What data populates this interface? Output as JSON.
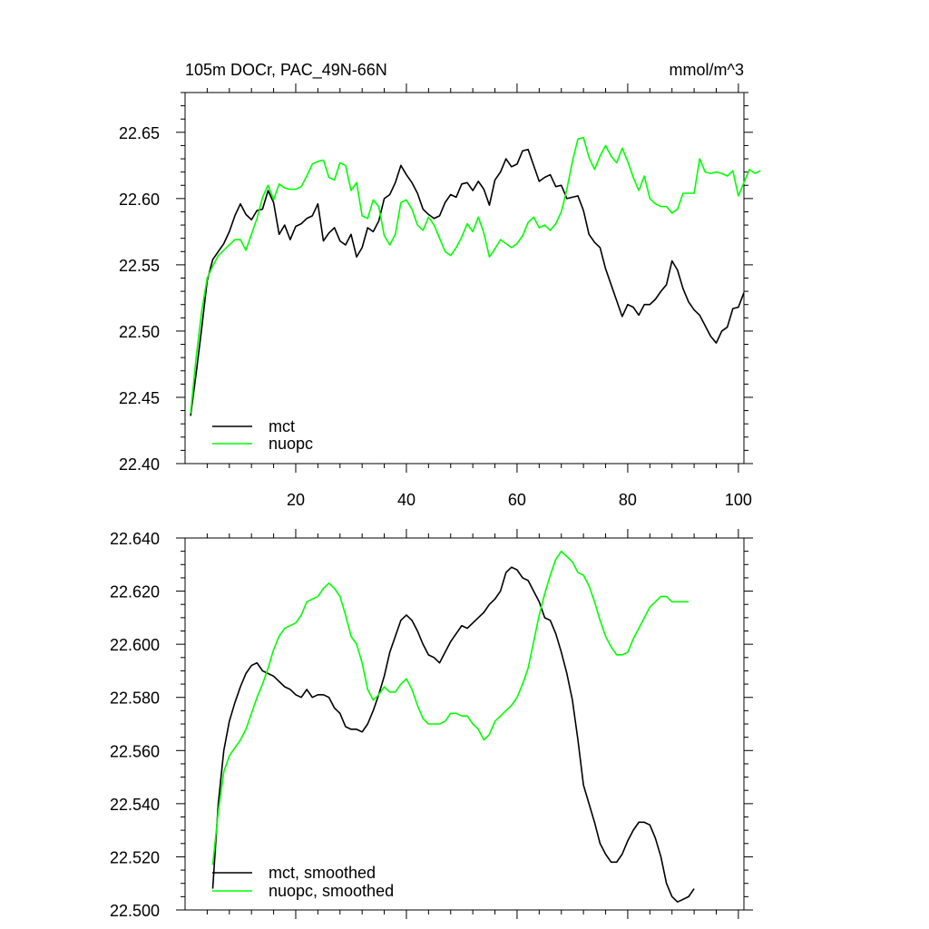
{
  "chart_data": [
    {
      "type": "line",
      "title": "105m DOCr, PAC_49N-66N",
      "units": "mmol/m^3",
      "xlabel": "",
      "ylabel": "",
      "xlim": [
        0,
        101
      ],
      "ylim": [
        22.4,
        22.68
      ],
      "x_tick_labels": [
        "20",
        "40",
        "60",
        "80",
        "100"
      ],
      "x_ticks": [
        20,
        40,
        60,
        80,
        100
      ],
      "y_tick_labels": [
        "22.40",
        "22.45",
        "22.50",
        "22.55",
        "22.60",
        "22.65"
      ],
      "y_ticks": [
        22.4,
        22.45,
        22.5,
        22.55,
        22.6,
        22.65
      ],
      "legend": "bottom-left",
      "series": [
        {
          "name": "mct",
          "color": "#000000",
          "x_start": 1,
          "values": [
            22.436,
            22.468,
            22.502,
            22.538,
            22.554,
            22.56,
            22.566,
            22.575,
            22.587,
            22.596,
            22.588,
            22.584,
            22.591,
            22.592,
            22.606,
            22.597,
            22.573,
            22.58,
            22.569,
            22.579,
            22.581,
            22.585,
            22.587,
            22.596,
            22.568,
            22.574,
            22.578,
            22.568,
            22.565,
            22.573,
            22.556,
            22.563,
            22.578,
            22.575,
            22.583,
            22.6,
            22.603,
            22.612,
            22.625,
            22.618,
            22.612,
            22.604,
            22.592,
            22.588,
            22.585,
            22.587,
            22.597,
            22.603,
            22.601,
            22.611,
            22.612,
            22.606,
            22.613,
            22.607,
            22.595,
            22.614,
            22.62,
            22.63,
            22.624,
            22.626,
            22.636,
            22.637,
            22.625,
            22.613,
            22.616,
            22.618,
            22.609,
            22.61,
            22.6,
            22.601,
            22.602,
            22.591,
            22.573,
            22.567,
            22.563,
            22.547,
            22.535,
            22.523,
            22.511,
            22.52,
            22.518,
            22.512,
            22.52,
            22.52,
            22.524,
            22.53,
            22.535,
            22.553,
            22.546,
            22.532,
            22.522,
            22.516,
            22.512,
            22.504,
            22.496,
            22.491,
            22.5,
            22.503,
            22.517,
            22.518,
            22.529
          ]
        },
        {
          "name": "nuopc",
          "color": "#00ff00",
          "x_start": 1,
          "values": [
            22.438,
            22.48,
            22.515,
            22.54,
            22.549,
            22.557,
            22.561,
            22.565,
            22.569,
            22.569,
            22.561,
            22.573,
            22.585,
            22.601,
            22.61,
            22.599,
            22.611,
            22.608,
            22.607,
            22.607,
            22.609,
            22.617,
            22.626,
            22.628,
            22.629,
            22.616,
            22.614,
            22.627,
            22.625,
            22.606,
            22.612,
            22.587,
            22.585,
            22.599,
            22.594,
            22.572,
            22.565,
            22.573,
            22.597,
            22.599,
            22.592,
            22.58,
            22.576,
            22.586,
            22.58,
            22.57,
            22.56,
            22.557,
            22.563,
            22.571,
            22.581,
            22.575,
            22.586,
            22.574,
            22.556,
            22.562,
            22.569,
            22.566,
            22.563,
            22.566,
            22.572,
            22.582,
            22.586,
            22.578,
            22.58,
            22.576,
            22.581,
            22.59,
            22.607,
            22.628,
            22.645,
            22.646,
            22.631,
            22.622,
            22.632,
            22.64,
            22.632,
            22.627,
            22.638,
            22.628,
            22.616,
            22.606,
            22.617,
            22.6,
            22.596,
            22.594,
            22.594,
            22.589,
            22.592,
            22.604,
            22.604,
            22.604,
            22.63,
            22.62,
            22.619,
            22.62,
            22.619,
            22.617,
            22.621,
            22.602,
            22.612,
            22.622,
            22.619,
            22.621
          ]
        }
      ]
    },
    {
      "type": "line",
      "title": "",
      "xlabel": "",
      "ylabel": "",
      "xlim": [
        0,
        101
      ],
      "ylim": [
        22.5,
        22.64
      ],
      "x_ticks": [
        20,
        40,
        60,
        80,
        100
      ],
      "y_tick_labels": [
        "22.500",
        "22.520",
        "22.540",
        "22.560",
        "22.580",
        "22.600",
        "22.620",
        "22.640"
      ],
      "y_ticks": [
        22.5,
        22.52,
        22.54,
        22.56,
        22.58,
        22.6,
        22.62,
        22.64
      ],
      "legend": "bottom-left",
      "series": [
        {
          "name": "mct, smoothed",
          "color": "#000000",
          "x_start": 5,
          "values": [
            22.508,
            22.54,
            22.56,
            22.571,
            22.578,
            22.584,
            22.589,
            22.592,
            22.593,
            22.59,
            22.589,
            22.588,
            22.586,
            22.584,
            22.583,
            22.581,
            22.58,
            22.583,
            22.58,
            22.581,
            22.581,
            22.58,
            22.576,
            22.574,
            22.569,
            22.568,
            22.568,
            22.567,
            22.57,
            22.575,
            22.581,
            22.588,
            22.597,
            22.603,
            22.609,
            22.611,
            22.609,
            22.605,
            22.6,
            22.596,
            22.595,
            22.593,
            22.597,
            22.601,
            22.604,
            22.607,
            22.606,
            22.608,
            22.61,
            22.612,
            22.615,
            22.617,
            22.62,
            22.627,
            22.629,
            22.628,
            22.625,
            22.624,
            22.62,
            22.616,
            22.61,
            22.609,
            22.604,
            22.597,
            22.589,
            22.579,
            22.564,
            22.547,
            22.54,
            22.533,
            22.525,
            22.521,
            22.518,
            22.518,
            22.521,
            22.526,
            22.53,
            22.533,
            22.533,
            22.532,
            22.527,
            22.52,
            22.51,
            22.505,
            22.503,
            22.504,
            22.505,
            22.508
          ]
        },
        {
          "name": "nuopc, smoothed",
          "color": "#00ff00",
          "x_start": 5,
          "values": [
            22.517,
            22.537,
            22.552,
            22.558,
            22.561,
            22.564,
            22.568,
            22.574,
            22.58,
            22.585,
            22.591,
            22.598,
            22.603,
            22.606,
            22.607,
            22.608,
            22.611,
            22.616,
            22.617,
            22.618,
            22.621,
            22.623,
            22.621,
            22.618,
            22.611,
            22.603,
            22.6,
            22.593,
            22.583,
            22.579,
            22.581,
            22.584,
            22.582,
            22.582,
            22.585,
            22.587,
            22.583,
            22.577,
            22.572,
            22.57,
            22.57,
            22.57,
            22.571,
            22.574,
            22.574,
            22.573,
            22.573,
            22.57,
            22.568,
            22.564,
            22.566,
            22.571,
            22.573,
            22.575,
            22.577,
            22.58,
            22.585,
            22.591,
            22.601,
            22.611,
            22.619,
            22.626,
            22.632,
            22.635,
            22.633,
            22.631,
            22.627,
            22.626,
            22.622,
            22.616,
            22.609,
            22.603,
            22.599,
            22.596,
            22.596,
            22.597,
            22.602,
            22.606,
            22.61,
            22.614,
            22.616,
            22.618,
            22.618,
            22.616,
            22.616,
            22.616,
            22.616
          ]
        }
      ]
    }
  ]
}
